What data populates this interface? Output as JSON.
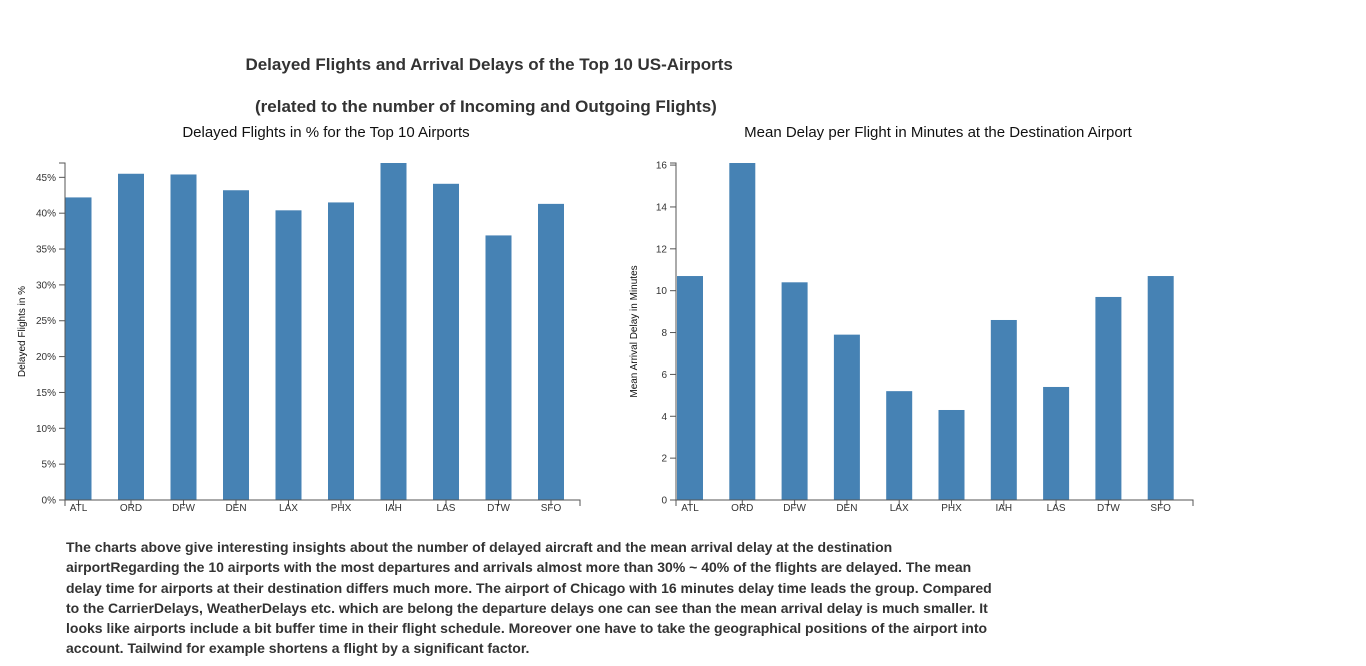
{
  "page": {
    "title_line1": "Delayed Flights and Arrival Delays of the Top 10 US-Airports",
    "title_line2": "(related to the number of Incoming and Outgoing Flights)",
    "description": "The charts above give interesting insights about the number of delayed aircraft and the mean arrival delay at the destination airportRegarding the 10 airports with the most departures and arrivals almost more than 30% ~ 40% of the flights are delayed. The mean delay time for airports at their destination differs much more. The airport of Chicago with 16 minutes delay time leads the group. Compared to the CarrierDelays, WeatherDelays etc. which are belong the departure delays one can see than the mean arrival delay is much smaller. It looks like airports include a bit buffer time in their flight schedule. Moreover one have to take the geographical positions of the airport into account. Tailwind for example shortens a flight by a significant factor."
  },
  "chart_data": [
    {
      "type": "bar",
      "title": "Delayed Flights in % for the Top 10 Airports",
      "xlabel": "",
      "ylabel": "Delayed Flights in %",
      "categories": [
        "ATL",
        "ORD",
        "DFW",
        "DEN",
        "LAX",
        "PHX",
        "IAH",
        "LAS",
        "DTW",
        "SFO"
      ],
      "values": [
        42.2,
        45.5,
        45.4,
        43.2,
        40.4,
        41.5,
        47.0,
        44.1,
        36.9,
        41.3
      ],
      "ylim": [
        0,
        47
      ],
      "yticks": [
        0,
        5,
        10,
        15,
        20,
        25,
        30,
        35,
        40,
        45
      ],
      "ytick_labels": [
        "0%",
        "5%",
        "10%",
        "15%",
        "20%",
        "25%",
        "30%",
        "35%",
        "40%",
        "45%"
      ],
      "color": "#4682b4",
      "grid": false
    },
    {
      "type": "bar",
      "title": "Mean Delay per Flight in Minutes at the Destination Airport",
      "xlabel": "",
      "ylabel": "Mean Arrival Delay in Minutes",
      "categories": [
        "ATL",
        "ORD",
        "DFW",
        "DEN",
        "LAX",
        "PHX",
        "IAH",
        "LAS",
        "DTW",
        "SFO"
      ],
      "values": [
        10.7,
        16.1,
        10.4,
        7.9,
        5.2,
        4.3,
        8.6,
        5.4,
        9.7,
        10.7
      ],
      "ylim": [
        0,
        16.1
      ],
      "yticks": [
        0,
        2,
        4,
        6,
        8,
        10,
        12,
        14,
        16
      ],
      "ytick_labels": [
        "0",
        "2",
        "4",
        "6",
        "8",
        "10",
        "12",
        "14",
        "16"
      ],
      "color": "#4682b4",
      "grid": false
    }
  ]
}
